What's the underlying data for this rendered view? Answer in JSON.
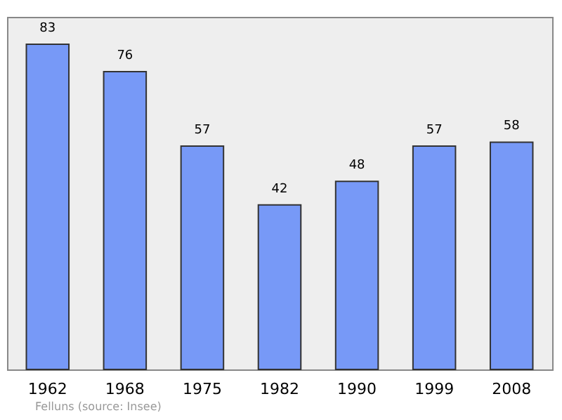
{
  "chart_data": {
    "type": "bar",
    "categories": [
      "1962",
      "1968",
      "1975",
      "1982",
      "1990",
      "1999",
      "2008"
    ],
    "values": [
      83,
      76,
      57,
      42,
      48,
      57,
      58
    ],
    "color": "#7799f7",
    "data_labels": true,
    "grid": false,
    "tick_labels": "x",
    "annotations": [
      "Felluns    (source: Insee)"
    ]
  }
}
